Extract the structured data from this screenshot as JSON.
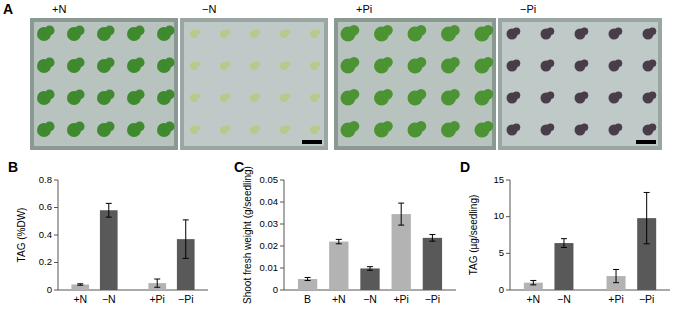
{
  "panel_a": {
    "title": "A",
    "photos": [
      {
        "label": "+N"
      },
      {
        "label": "−N"
      },
      {
        "label": "+Pi"
      },
      {
        "label": "−Pi"
      }
    ]
  },
  "chart_data": [
    {
      "type": "bar",
      "title": "B",
      "y_label": "TAG (%DW)",
      "categories": [
        "+N",
        "−N",
        "+Pi",
        "−Pi"
      ],
      "values": [
        0.04,
        0.58,
        0.05,
        0.37
      ],
      "errors": [
        0.005,
        0.05,
        0.03,
        0.14
      ],
      "colors": [
        "#b3b3b3",
        "#595959",
        "#b3b3b3",
        "#595959"
      ],
      "ylim": [
        0,
        0.8
      ],
      "yticks": [
        0,
        0.2,
        0.4,
        0.6,
        0.8
      ],
      "grid": false
    },
    {
      "type": "bar",
      "title": "C",
      "y_label": "Shoot fresh weight (g/seedling)",
      "categories": [
        "B",
        "+N",
        "−N",
        "+Pi",
        "−Pi"
      ],
      "values": [
        0.005,
        0.022,
        0.0098,
        0.0345,
        0.0237
      ],
      "errors": [
        0.0007,
        0.001,
        0.0008,
        0.005,
        0.0015
      ],
      "colors": [
        "#b3b3b3",
        "#b3b3b3",
        "#595959",
        "#b3b3b3",
        "#595959"
      ],
      "ylim": [
        0,
        0.05
      ],
      "yticks": [
        0,
        0.01,
        0.02,
        0.03,
        0.04,
        0.05
      ],
      "grid": false
    },
    {
      "type": "bar",
      "title": "D",
      "y_label": "TAG (µg/seedling)",
      "categories": [
        "+N",
        "−N",
        "+Pi",
        "−Pi"
      ],
      "values": [
        1.0,
        6.4,
        1.9,
        9.8
      ],
      "errors": [
        0.3,
        0.6,
        0.9,
        3.5
      ],
      "colors": [
        "#b3b3b3",
        "#595959",
        "#b3b3b3",
        "#595959"
      ],
      "ylim": [
        0,
        15
      ],
      "yticks": [
        0,
        5,
        10,
        15
      ],
      "grid": false
    }
  ]
}
